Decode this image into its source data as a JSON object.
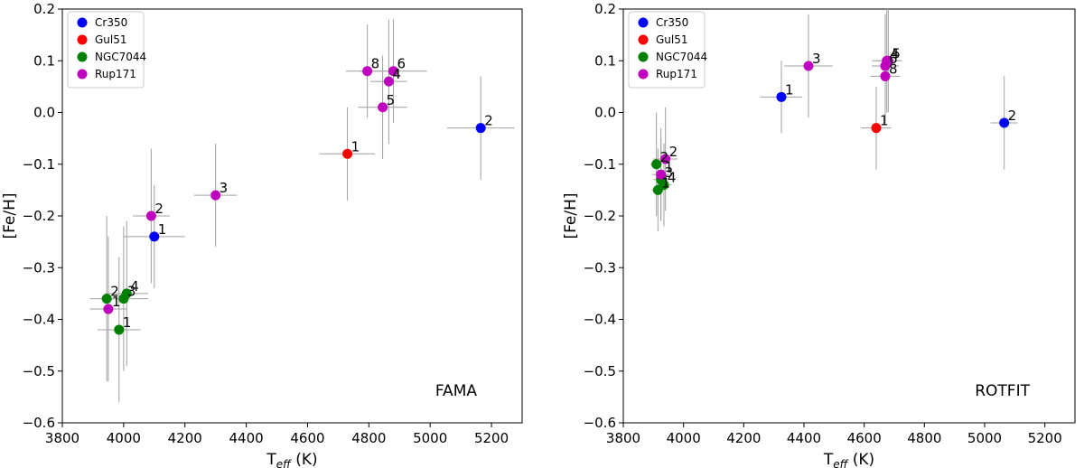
{
  "series_colors": {
    "Cr350": "#0000ff",
    "Gul51": "#ff0000",
    "NGC7044": "#008000",
    "Rup171": "#bf00bf"
  },
  "errorbar_color": "#a0a0a0",
  "chart_data": [
    {
      "type": "scatter",
      "title": "FAMA",
      "xlabel": "T_eff (K)",
      "ylabel": "[Fe/H]",
      "xlim": [
        3800,
        5300
      ],
      "ylim": [
        -0.6,
        0.2
      ],
      "xticks": [
        3800,
        4000,
        4200,
        4400,
        4600,
        4800,
        5000,
        5200
      ],
      "yticks": [
        -0.6,
        -0.5,
        -0.4,
        -0.3,
        -0.2,
        -0.1,
        0.0,
        0.1,
        0.2
      ],
      "legend_position": "top-left",
      "series": [
        {
          "name": "Cr350",
          "points": [
            {
              "label": "1",
              "x": 4100,
              "y": -0.24,
              "xerr": 100,
              "yerr": 0.1
            },
            {
              "label": "2",
              "x": 5165,
              "y": -0.03,
              "xerr": 110,
              "yerr": 0.1
            }
          ]
        },
        {
          "name": "Gul51",
          "points": [
            {
              "label": "1",
              "x": 4730,
              "y": -0.08,
              "xerr": 90,
              "yerr": 0.09
            }
          ]
        },
        {
          "name": "NGC7044",
          "points": [
            {
              "label": "1",
              "x": 3985,
              "y": -0.42,
              "xerr": 70,
              "yerr": 0.14
            },
            {
              "label": "2",
              "x": 3945,
              "y": -0.36,
              "xerr": 55,
              "yerr": 0.16
            },
            {
              "label": "3",
              "x": 4000,
              "y": -0.36,
              "xerr": 80,
              "yerr": 0.14
            },
            {
              "label": "4",
              "x": 4010,
              "y": -0.35,
              "xerr": 70,
              "yerr": 0.14
            }
          ]
        },
        {
          "name": "Rup171",
          "points": [
            {
              "label": "1",
              "x": 3950,
              "y": -0.38,
              "xerr": 60,
              "yerr": 0.14
            },
            {
              "label": "2",
              "x": 4090,
              "y": -0.2,
              "xerr": 60,
              "yerr": 0.13
            },
            {
              "label": "3",
              "x": 4300,
              "y": -0.16,
              "xerr": 70,
              "yerr": 0.1
            },
            {
              "label": "4",
              "x": 4865,
              "y": 0.06,
              "xerr": 60,
              "yerr": 0.12
            },
            {
              "label": "5",
              "x": 4845,
              "y": 0.01,
              "xerr": 80,
              "yerr": 0.1
            },
            {
              "label": "6",
              "x": 4880,
              "y": 0.08,
              "xerr": 110,
              "yerr": 0.1
            },
            {
              "label": "8",
              "x": 4795,
              "y": 0.08,
              "xerr": 70,
              "yerr": 0.09
            }
          ]
        }
      ]
    },
    {
      "type": "scatter",
      "title": "ROTFIT",
      "xlabel": "T_eff (K)",
      "ylabel": "[Fe/H]",
      "xlim": [
        3800,
        5300
      ],
      "ylim": [
        -0.6,
        0.2
      ],
      "xticks": [
        3800,
        4000,
        4200,
        4400,
        4600,
        4800,
        5000,
        5200
      ],
      "yticks": [
        -0.6,
        -0.5,
        -0.4,
        -0.3,
        -0.2,
        -0.1,
        0.0,
        0.1,
        0.2
      ],
      "legend_position": "top-left",
      "series": [
        {
          "name": "Cr350",
          "points": [
            {
              "label": "1",
              "x": 4325,
              "y": 0.03,
              "xerr": 70,
              "yerr": 0.07
            },
            {
              "label": "2",
              "x": 5065,
              "y": -0.02,
              "xerr": 45,
              "yerr": 0.09
            }
          ]
        },
        {
          "name": "Gul51",
          "points": [
            {
              "label": "1",
              "x": 4640,
              "y": -0.03,
              "xerr": 50,
              "yerr": 0.08
            }
          ]
        },
        {
          "name": "NGC7044",
          "points": [
            {
              "label": "1",
              "x": 3915,
              "y": -0.15,
              "xerr": 20,
              "yerr": 0.08
            },
            {
              "label": "2",
              "x": 3910,
              "y": -0.1,
              "xerr": 20,
              "yerr": 0.1
            },
            {
              "label": "3",
              "x": 3925,
              "y": -0.13,
              "xerr": 25,
              "yerr": 0.08
            },
            {
              "label": "4",
              "x": 3935,
              "y": -0.14,
              "xerr": 25,
              "yerr": 0.08
            }
          ]
        },
        {
          "name": "Rup171",
          "points": [
            {
              "label": "1",
              "x": 3925,
              "y": -0.12,
              "xerr": 30,
              "yerr": 0.09
            },
            {
              "label": "2",
              "x": 3940,
              "y": -0.09,
              "xerr": 40,
              "yerr": 0.1
            },
            {
              "label": "3",
              "x": 4415,
              "y": 0.09,
              "xerr": 80,
              "yerr": 0.1
            },
            {
              "label": "4",
              "x": 4675,
              "y": 0.1,
              "xerr": 50,
              "yerr": 0.1
            },
            {
              "label": "5",
              "x": 4680,
              "y": 0.1,
              "xerr": 40,
              "yerr": 0.1
            },
            {
              "label": "6",
              "x": 4670,
              "y": 0.09,
              "xerr": 45,
              "yerr": 0.1
            },
            {
              "label": "8",
              "x": 4670,
              "y": 0.07,
              "xerr": 50,
              "yerr": 0.09
            }
          ]
        }
      ]
    }
  ]
}
